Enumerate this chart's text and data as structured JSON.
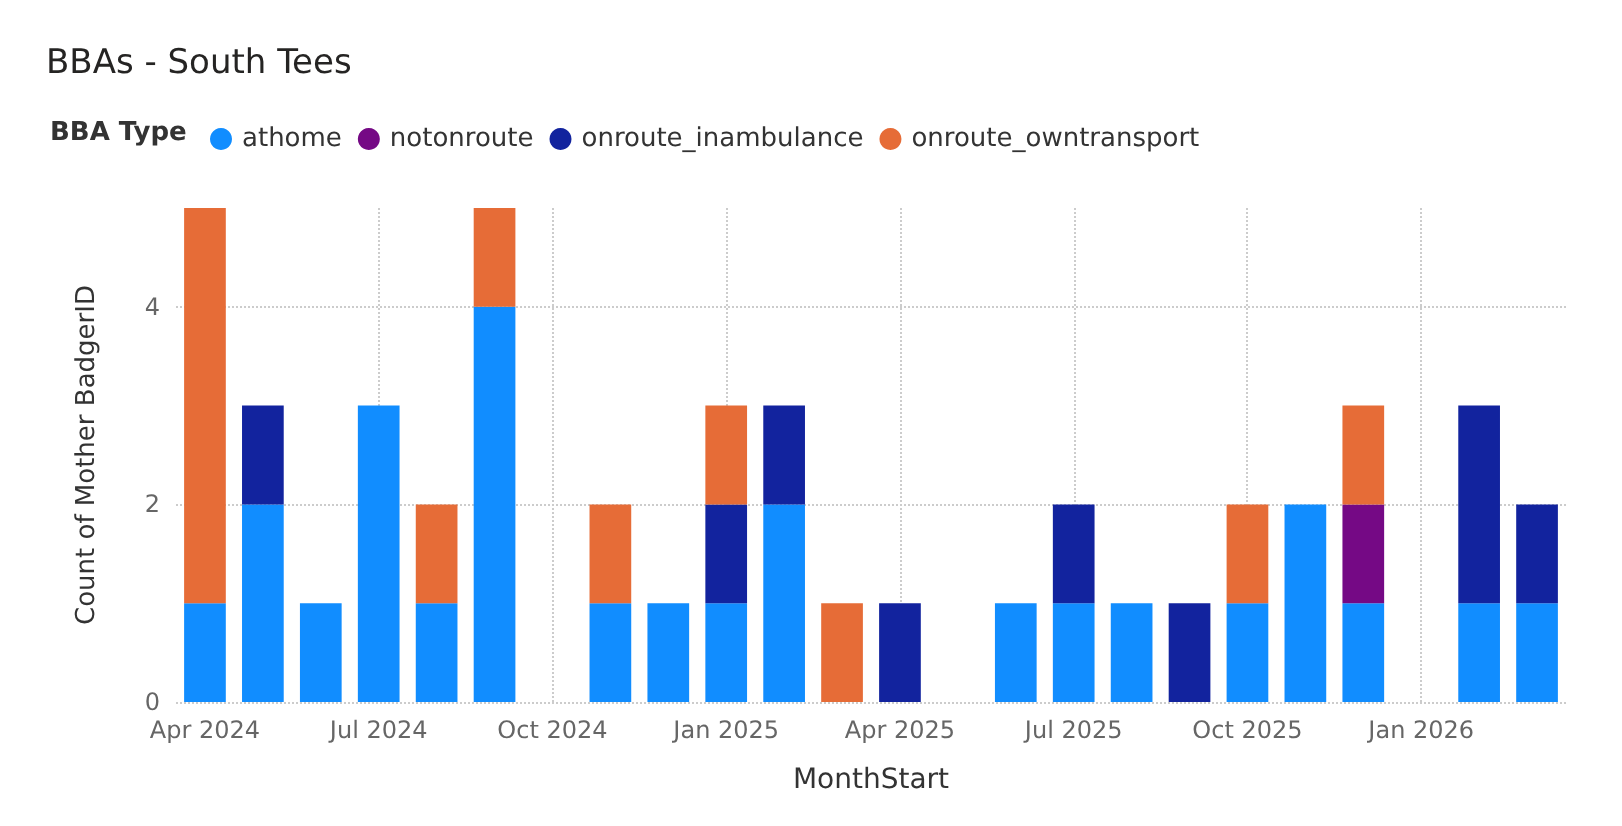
{
  "chart_data": {
    "type": "bar",
    "title": "BBAs - South Tees",
    "xlabel": "MonthStart",
    "ylabel": "Count of Mother BadgerID",
    "legend_title": "BBA Type",
    "categories": [
      "Apr 2024",
      null,
      null,
      "Jul 2024",
      null,
      null,
      "Oct 2024",
      null,
      null,
      "Jan 2025",
      null,
      null,
      "Apr 2025",
      null,
      null,
      "Jul 2025",
      null,
      null,
      "Oct 2025",
      null,
      null,
      "Jan 2026",
      null,
      null
    ],
    "series": [
      {
        "name": "athome",
        "color": "#118dff",
        "values": [
          1,
          2,
          1,
          3,
          1,
          4,
          null,
          1,
          1,
          1,
          2,
          null,
          null,
          null,
          1,
          1,
          1,
          null,
          1,
          2,
          1,
          null,
          1,
          1
        ]
      },
      {
        "name": "notonroute",
        "color": "#750985",
        "values": [
          null,
          null,
          null,
          null,
          null,
          null,
          null,
          null,
          null,
          null,
          null,
          null,
          null,
          null,
          null,
          null,
          null,
          null,
          null,
          null,
          1,
          null,
          null,
          null
        ]
      },
      {
        "name": "onroute_inambulance",
        "color": "#12239e",
        "values": [
          null,
          1,
          null,
          null,
          null,
          null,
          null,
          null,
          null,
          1,
          1,
          null,
          1,
          null,
          null,
          1,
          null,
          1,
          null,
          null,
          null,
          null,
          2,
          1
        ]
      },
      {
        "name": "onroute_owntransport",
        "color": "#e66c37",
        "values": [
          4,
          null,
          null,
          null,
          1,
          1,
          null,
          1,
          null,
          1,
          null,
          1,
          null,
          null,
          null,
          null,
          null,
          null,
          1,
          null,
          1,
          null,
          null,
          null
        ]
      }
    ],
    "stacked": true,
    "ylim": [
      0,
      5
    ],
    "yticks": [
      0,
      2,
      4
    ],
    "grid": true,
    "legend": "top left"
  }
}
